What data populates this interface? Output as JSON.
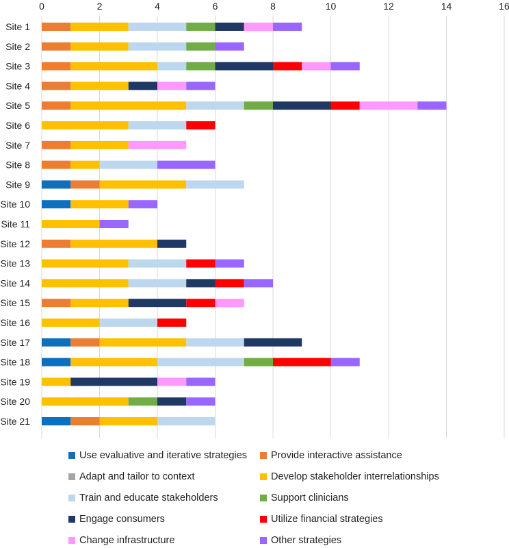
{
  "chart_data": {
    "type": "bar",
    "orientation": "horizontal",
    "stacked": true,
    "title": "",
    "xlabel": "",
    "ylabel": "",
    "xlim": [
      0,
      16
    ],
    "xticks": [
      0,
      2,
      4,
      6,
      8,
      10,
      12,
      14,
      16
    ],
    "grid": "vertical",
    "legend_position": "bottom",
    "categories": [
      "Site 1",
      "Site 2",
      "Site 3",
      "Site 4",
      "Site 5",
      "Site 6",
      "Site 7",
      "Site 8",
      "Site 9",
      "Site 10",
      "Site 11",
      "Site 12",
      "Site 13",
      "Site 14",
      "Site 15",
      "Site 16",
      "Site 17",
      "Site 18",
      "Site 19",
      "Site 20",
      "Site 21"
    ],
    "series": [
      {
        "name": "Use evaluative and iterative strategies",
        "color": "#0E6FBE",
        "values": [
          0,
          0,
          0,
          0,
          0,
          0,
          0,
          0,
          1,
          1,
          0,
          0,
          0,
          0,
          0,
          0,
          1,
          1,
          0,
          0,
          1
        ]
      },
      {
        "name": "Provide interactive assistance",
        "color": "#ED7D31",
        "values": [
          1,
          1,
          1,
          1,
          1,
          0,
          1,
          1,
          1,
          0,
          0,
          1,
          0,
          0,
          1,
          0,
          1,
          0,
          0,
          0,
          1
        ]
      },
      {
        "name": "Adapt and tailor to context",
        "color": "#A5A5A5",
        "values": [
          0,
          0,
          0,
          0,
          0,
          0,
          0,
          0,
          0,
          0,
          0,
          0,
          0,
          0,
          0,
          0,
          0,
          0,
          0,
          0,
          0
        ]
      },
      {
        "name": "Develop stakeholder interrelationships",
        "color": "#FFC000",
        "values": [
          2,
          2,
          3,
          2,
          4,
          3,
          2,
          1,
          3,
          2,
          2,
          3,
          3,
          3,
          2,
          2,
          3,
          3,
          1,
          3,
          2
        ]
      },
      {
        "name": "Train and educate stakeholders",
        "color": "#BDD7EE",
        "values": [
          2,
          2,
          1,
          0,
          2,
          2,
          0,
          2,
          2,
          0,
          0,
          0,
          2,
          2,
          0,
          2,
          2,
          3,
          0,
          0,
          2
        ]
      },
      {
        "name": "Support clinicians",
        "color": "#70AD47",
        "values": [
          1,
          1,
          1,
          0,
          1,
          0,
          0,
          0,
          0,
          0,
          0,
          0,
          0,
          0,
          0,
          0,
          0,
          1,
          0,
          1,
          0
        ]
      },
      {
        "name": "Engage consumers",
        "color": "#203864",
        "values": [
          1,
          0,
          2,
          1,
          2,
          0,
          0,
          0,
          0,
          0,
          0,
          1,
          0,
          1,
          2,
          0,
          2,
          0,
          3,
          1,
          0
        ]
      },
      {
        "name": "Utilize financial strategies",
        "color": "#FF0000",
        "values": [
          0,
          0,
          1,
          0,
          1,
          1,
          0,
          0,
          0,
          0,
          0,
          0,
          1,
          1,
          1,
          1,
          0,
          2,
          0,
          0,
          0
        ]
      },
      {
        "name": "Change infrastructure",
        "color": "#FF99FF",
        "values": [
          1,
          0,
          1,
          1,
          2,
          0,
          2,
          0,
          0,
          0,
          0,
          0,
          0,
          0,
          1,
          0,
          0,
          0,
          1,
          0,
          0
        ]
      },
      {
        "name": "Other strategies",
        "color": "#9966FF",
        "values": [
          1,
          1,
          1,
          1,
          1,
          0,
          0,
          2,
          0,
          1,
          1,
          0,
          1,
          1,
          0,
          0,
          0,
          1,
          1,
          1,
          0
        ]
      }
    ]
  }
}
